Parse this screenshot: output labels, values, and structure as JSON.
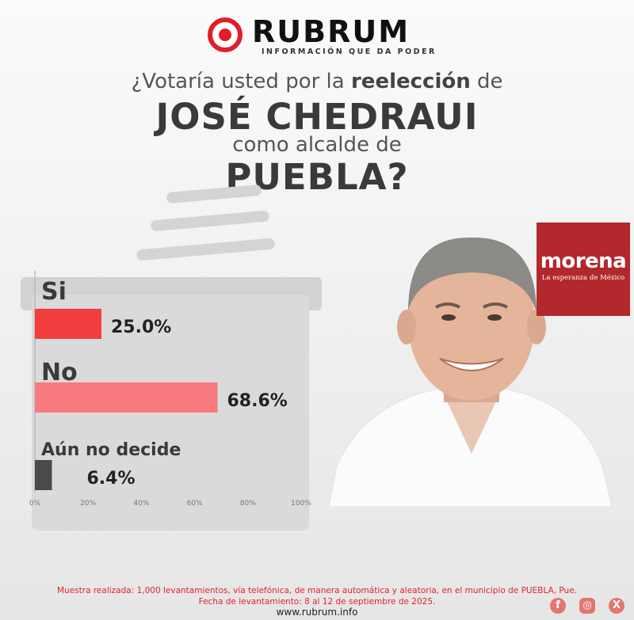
{
  "brand": {
    "name": "RUBRUM",
    "tagline": "INFORMACIÓN QUE DA PODER",
    "url": "www.rubrum.info"
  },
  "question": {
    "line1_start": "¿Votaría usted por la ",
    "line1_bold": "reelección",
    "line1_end": " de",
    "name": "JOSÉ CHEDRAUI",
    "line3": "como alcalde de",
    "place": "PUEBLA?"
  },
  "party": {
    "name": "morena",
    "tagline": "La esperanza de México",
    "color": "#b3282d"
  },
  "footnote": {
    "line1": "Muestra realizada: 1,000 levantamientos, vía telefónica, de manera automática y aleatoria, en el municipio de PUEBLA, Pue.",
    "line2": "Fecha de levantamiento: 8 al 12 de septiembre de 2025."
  },
  "social": {
    "facebook": "facebook-icon",
    "instagram": "instagram-icon",
    "x": "x-icon"
  },
  "chart_data": {
    "type": "bar",
    "orientation": "horizontal",
    "categories": [
      "Si",
      "No",
      "Aún no decide"
    ],
    "values": [
      25.0,
      68.6,
      6.4
    ],
    "value_labels": [
      "25.0%",
      "68.6%",
      "6.4%"
    ],
    "colors": [
      "#f23e3e",
      "#f77a7f",
      "#4a4a4a"
    ],
    "xlim": [
      0,
      100
    ],
    "xticks": [
      "0%",
      "20%",
      "40%",
      "60%",
      "80%",
      "100%"
    ],
    "grid": false
  }
}
